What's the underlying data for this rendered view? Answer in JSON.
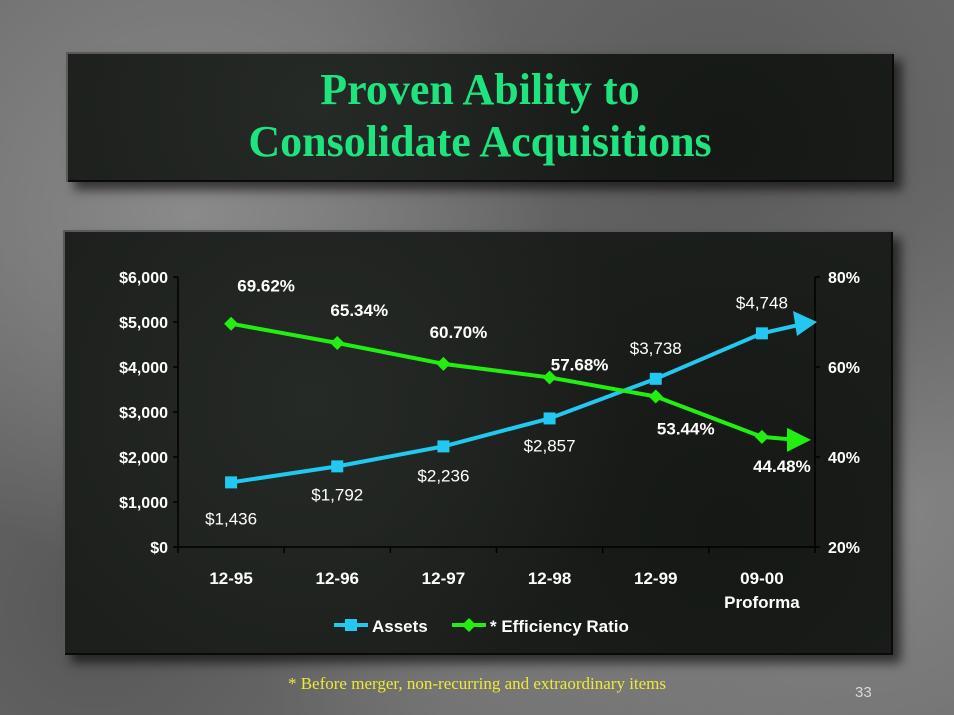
{
  "slide": {
    "title_line1": "Proven Ability to",
    "title_line2": "Consolidate Acquisitions",
    "footnote": "* Before merger, non-recurring and extraordinary items",
    "page_number": "33"
  },
  "colors": {
    "title": "#1ee37e",
    "assets": "#22c8f0",
    "efficiency": "#22ee11",
    "text": "#ffffff",
    "footnote": "#f0ea34"
  },
  "chart_data": {
    "type": "line",
    "categories": [
      "12-95",
      "12-96",
      "12-97",
      "12-98",
      "12-99",
      "09-00\nProforma"
    ],
    "category_lines": [
      [
        "12-95"
      ],
      [
        "12-96"
      ],
      [
        "12-97"
      ],
      [
        "12-98"
      ],
      [
        "12-99"
      ],
      [
        "09-00",
        "Proforma"
      ]
    ],
    "y_left": {
      "min": 0,
      "max": 6000,
      "ticks": [
        0,
        1000,
        2000,
        3000,
        4000,
        5000,
        6000
      ],
      "tick_labels": [
        "$0",
        "$1,000",
        "$2,000",
        "$3,000",
        "$4,000",
        "$5,000",
        "$6,000"
      ]
    },
    "y_right": {
      "min": 20,
      "max": 80,
      "ticks": [
        20,
        40,
        60,
        80
      ],
      "tick_labels": [
        "20%",
        "40%",
        "60%",
        "80%"
      ]
    },
    "series": [
      {
        "name": "Assets",
        "axis": "left",
        "marker": "square",
        "values": [
          1436,
          1792,
          2236,
          2857,
          3738,
          4748
        ],
        "labels": [
          "$1,436",
          "$1,792",
          "$2,236",
          "$2,857",
          "$3,738",
          "$4,748"
        ]
      },
      {
        "name": "* Efficiency Ratio",
        "axis": "right",
        "marker": "diamond",
        "values": [
          69.62,
          65.34,
          60.7,
          57.68,
          53.44,
          44.48
        ],
        "labels": [
          "69.62%",
          "65.34%",
          "60.70%",
          "57.68%",
          "53.44%",
          "44.48%"
        ]
      }
    ],
    "legend_position": "bottom",
    "grid": false
  }
}
